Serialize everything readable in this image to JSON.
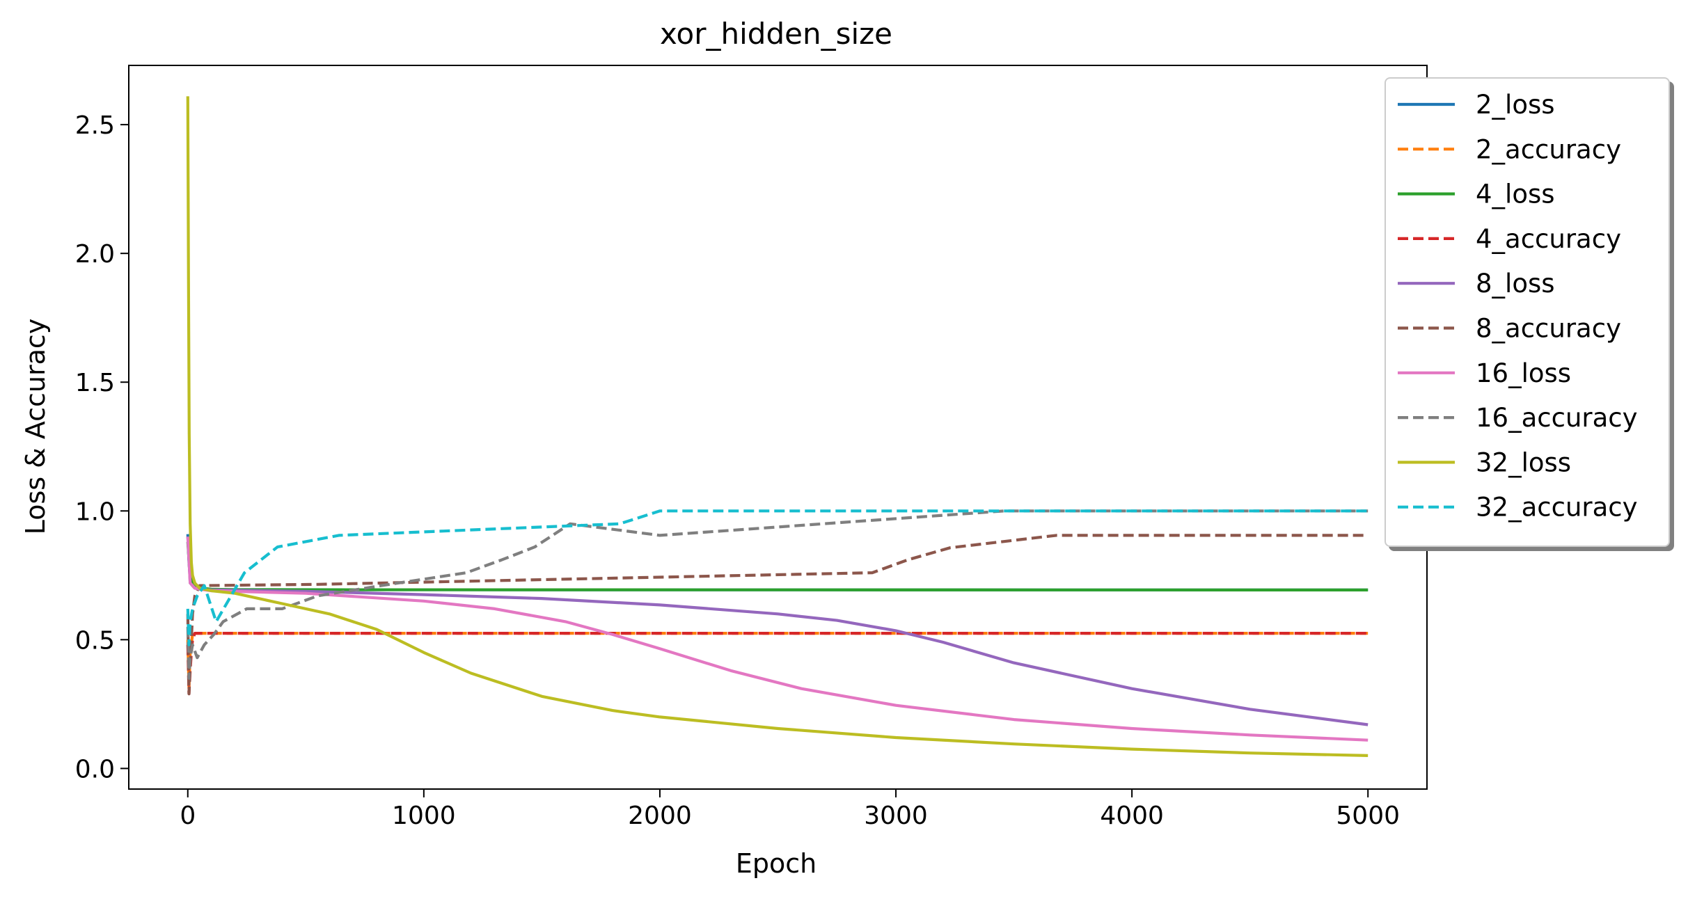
{
  "chart_data": {
    "type": "line",
    "title": "xor_hidden_size",
    "xlabel": "Epoch",
    "ylabel": "Loss & Accuracy",
    "xlim": [
      -250,
      5250
    ],
    "ylim": [
      -0.08,
      2.73
    ],
    "xticks": [
      0,
      1000,
      2000,
      3000,
      4000,
      5000
    ],
    "yticks": [
      0.0,
      0.5,
      1.0,
      1.5,
      2.0,
      2.5
    ],
    "xtick_labels": [
      "0",
      "1000",
      "2000",
      "3000",
      "4000",
      "5000"
    ],
    "ytick_labels": [
      "0.0",
      "0.5",
      "1.0",
      "1.5",
      "2.0",
      "2.5"
    ],
    "grid": false,
    "legend_position": "upper-right-outside",
    "series": [
      {
        "name": "2_loss",
        "color": "#1f77b4",
        "style": "solid",
        "x": [
          0,
          5,
          10,
          20,
          40,
          80,
          200,
          5000
        ],
        "y": [
          0.91,
          0.8,
          0.74,
          0.71,
          0.7,
          0.695,
          0.694,
          0.693
        ]
      },
      {
        "name": "2_accuracy",
        "color": "#ff7f0e",
        "style": "dashed",
        "x": [
          0,
          5,
          10,
          20,
          30,
          5000
        ],
        "y": [
          0.5,
          0.31,
          0.45,
          0.52,
          0.525,
          0.525
        ]
      },
      {
        "name": "4_loss",
        "color": "#2ca02c",
        "style": "solid",
        "x": [
          0,
          10,
          30,
          60,
          100,
          200,
          5000
        ],
        "y": [
          0.88,
          0.74,
          0.71,
          0.7,
          0.696,
          0.694,
          0.693
        ]
      },
      {
        "name": "4_accuracy",
        "color": "#d62728",
        "style": "dashed",
        "x": [
          0,
          5,
          10,
          15,
          20,
          30,
          5000
        ],
        "y": [
          0.48,
          0.29,
          0.38,
          0.45,
          0.5,
          0.525,
          0.525
        ]
      },
      {
        "name": "8_loss",
        "color": "#9467bd",
        "style": "solid",
        "x": [
          0,
          10,
          30,
          60,
          100,
          500,
          1000,
          1500,
          2000,
          2500,
          2750,
          3000,
          3200,
          3500,
          4000,
          4500,
          5000
        ],
        "y": [
          0.9,
          0.72,
          0.7,
          0.695,
          0.693,
          0.688,
          0.675,
          0.66,
          0.635,
          0.6,
          0.575,
          0.535,
          0.49,
          0.41,
          0.31,
          0.23,
          0.17
        ]
      },
      {
        "name": "8_accuracy",
        "color": "#8c564b",
        "style": "dashed",
        "x": [
          0,
          5,
          10,
          20,
          30,
          50,
          550,
          2900,
          3050,
          3230,
          3680,
          5000
        ],
        "y": [
          0.6,
          0.29,
          0.4,
          0.6,
          0.67,
          0.71,
          0.715,
          0.76,
          0.81,
          0.857,
          0.905,
          0.905
        ]
      },
      {
        "name": "16_loss",
        "color": "#e377c2",
        "style": "solid",
        "x": [
          0,
          10,
          30,
          60,
          100,
          500,
          1000,
          1300,
          1600,
          1800,
          2000,
          2300,
          2600,
          3000,
          3500,
          4000,
          4500,
          5000
        ],
        "y": [
          0.9,
          0.72,
          0.7,
          0.695,
          0.69,
          0.68,
          0.65,
          0.62,
          0.57,
          0.52,
          0.465,
          0.38,
          0.31,
          0.245,
          0.19,
          0.155,
          0.13,
          0.11
        ]
      },
      {
        "name": "16_accuracy",
        "color": "#7f7f7f",
        "style": "dashed",
        "x": [
          0,
          5,
          10,
          20,
          40,
          70,
          110,
          150,
          250,
          400,
          550,
          820,
          1180,
          1330,
          1470,
          1620,
          2000,
          3460,
          5000
        ],
        "y": [
          0.55,
          0.35,
          0.43,
          0.48,
          0.43,
          0.48,
          0.52,
          0.57,
          0.62,
          0.62,
          0.67,
          0.71,
          0.76,
          0.81,
          0.86,
          0.95,
          0.905,
          1.0,
          1.0
        ]
      },
      {
        "name": "32_loss",
        "color": "#bcbd22",
        "style": "solid",
        "x": [
          0,
          3,
          6,
          10,
          15,
          20,
          30,
          50,
          100,
          200,
          400,
          600,
          800,
          1000,
          1200,
          1500,
          1800,
          2000,
          2500,
          3000,
          3500,
          4000,
          4500,
          5000
        ],
        "y": [
          2.61,
          1.9,
          1.3,
          0.95,
          0.8,
          0.75,
          0.72,
          0.7,
          0.69,
          0.68,
          0.64,
          0.6,
          0.54,
          0.45,
          0.37,
          0.28,
          0.225,
          0.2,
          0.155,
          0.12,
          0.095,
          0.075,
          0.06,
          0.05
        ]
      },
      {
        "name": "32_accuracy",
        "color": "#17becf",
        "style": "dashed",
        "x": [
          0,
          5,
          10,
          20,
          40,
          70,
          120,
          240,
          380,
          640,
          1830,
          2000,
          5000
        ],
        "y": [
          0.62,
          0.48,
          0.57,
          0.62,
          0.67,
          0.71,
          0.57,
          0.76,
          0.86,
          0.905,
          0.95,
          1.0,
          1.0
        ]
      }
    ]
  }
}
